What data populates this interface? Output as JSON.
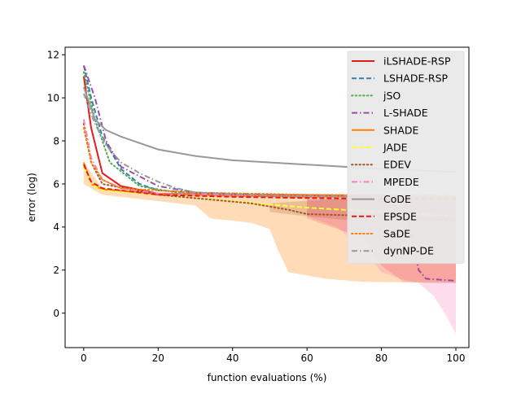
{
  "chart_data": {
    "type": "line",
    "title": "",
    "xlabel": "function evaluations (%)",
    "ylabel": "error (log)",
    "xlim": [
      -5,
      103.5
    ],
    "ylim": [
      -1.6,
      12.35
    ],
    "xticks": [
      0,
      20,
      40,
      60,
      80,
      100
    ],
    "yticks": [
      0,
      2,
      4,
      6,
      8,
      10,
      12
    ],
    "xtick_labels": [
      "0",
      "20",
      "40",
      "60",
      "80",
      "100"
    ],
    "ytick_labels": [
      "0",
      "2",
      "4",
      "6",
      "8",
      "10",
      "12"
    ],
    "grid": false,
    "legend_position": "top-right",
    "bands": [
      {
        "name": "SHADE range",
        "color": "#ff7f00",
        "opacity": 0.28,
        "upper": [
          [
            0,
            7.0
          ],
          [
            5,
            5.8
          ],
          [
            20,
            5.6
          ],
          [
            50,
            5.55
          ],
          [
            70,
            5.5
          ],
          [
            100,
            5.4
          ]
        ],
        "lower": [
          [
            0,
            6.0
          ],
          [
            5,
            5.5
          ],
          [
            20,
            5.2
          ],
          [
            30,
            5.0
          ],
          [
            34,
            4.4
          ],
          [
            45,
            4.2
          ],
          [
            50,
            3.9
          ],
          [
            52,
            3.0
          ],
          [
            55,
            1.9
          ],
          [
            60,
            1.75
          ],
          [
            65,
            1.6
          ],
          [
            75,
            1.45
          ],
          [
            100,
            1.4
          ]
        ]
      },
      {
        "name": "MPEDE range",
        "color": "#f781bf",
        "opacity": 0.28,
        "upper": [
          [
            60,
            5.3
          ],
          [
            80,
            5.3
          ],
          [
            95,
            5.3
          ],
          [
            100,
            5.3
          ]
        ],
        "lower": [
          [
            60,
            4.5
          ],
          [
            68,
            4.0
          ],
          [
            75,
            3.0
          ],
          [
            80,
            1.9
          ],
          [
            85,
            1.6
          ],
          [
            90,
            1.4
          ],
          [
            94,
            0.8
          ],
          [
            97,
            0.0
          ],
          [
            100,
            -0.95
          ]
        ]
      },
      {
        "name": "iLSHADE-RSP range",
        "color": "#e41a1c",
        "opacity": 0.16,
        "upper": [
          [
            60,
            5.3
          ],
          [
            100,
            5.3
          ]
        ],
        "lower": [
          [
            60,
            4.4
          ],
          [
            75,
            3.5
          ],
          [
            80,
            2.2
          ],
          [
            86,
            1.45
          ],
          [
            100,
            1.4
          ]
        ]
      },
      {
        "name": "EDEV range",
        "color": "#a65628",
        "opacity": 0.22,
        "upper": [
          [
            50,
            5.1
          ],
          [
            75,
            5.4
          ],
          [
            100,
            5.4
          ]
        ],
        "lower": [
          [
            50,
            4.7
          ],
          [
            60,
            4.5
          ],
          [
            75,
            4.25
          ],
          [
            100,
            4.2
          ]
        ]
      }
    ],
    "series": [
      {
        "name": "iLSHADE-RSP",
        "color": "#e41a1c",
        "dash": "solid",
        "width": 2.0,
        "points": [
          [
            0,
            11.0
          ],
          [
            2,
            8.6
          ],
          [
            5,
            6.5
          ],
          [
            10,
            5.9
          ],
          [
            20,
            5.55
          ],
          [
            40,
            5.5
          ],
          [
            70,
            5.45
          ],
          [
            90,
            5.4
          ],
          [
            100,
            5.4
          ]
        ]
      },
      {
        "name": "LSHADE-RSP",
        "color": "#377eb8",
        "dash": "dashed",
        "width": 2.0,
        "points": [
          [
            0,
            11.5
          ],
          [
            2,
            10.0
          ],
          [
            5,
            8.2
          ],
          [
            10,
            6.7
          ],
          [
            15,
            6.0
          ],
          [
            20,
            5.7
          ],
          [
            40,
            5.5
          ],
          [
            70,
            5.45
          ],
          [
            100,
            5.4
          ]
        ]
      },
      {
        "name": "jSO",
        "color": "#4daf4a",
        "dash": "dotted",
        "width": 2.0,
        "points": [
          [
            0,
            11.2
          ],
          [
            3,
            9.0
          ],
          [
            7,
            7.0
          ],
          [
            15,
            5.9
          ],
          [
            25,
            5.6
          ],
          [
            50,
            5.5
          ],
          [
            100,
            5.4
          ]
        ]
      },
      {
        "name": "L-SHADE",
        "color": "#984ea3",
        "dash": "dashdot",
        "width": 2.0,
        "points": [
          [
            0,
            11.5
          ],
          [
            3,
            10.0
          ],
          [
            6,
            8.0
          ],
          [
            10,
            6.8
          ],
          [
            20,
            5.9
          ],
          [
            30,
            5.6
          ],
          [
            50,
            5.5
          ],
          [
            80,
            5.45
          ],
          [
            87,
            4.5
          ],
          [
            90,
            2.0
          ],
          [
            92,
            1.6
          ],
          [
            100,
            1.5
          ]
        ]
      },
      {
        "name": "SHADE",
        "color": "#ff7f00",
        "dash": "solid",
        "width": 2.0,
        "points": [
          [
            0,
            7.0
          ],
          [
            2,
            6.0
          ],
          [
            5,
            5.75
          ],
          [
            20,
            5.55
          ],
          [
            40,
            5.45
          ],
          [
            60,
            5.4
          ],
          [
            80,
            5.4
          ],
          [
            100,
            5.4
          ]
        ]
      },
      {
        "name": "JADE",
        "color": "#ffff33",
        "dash": "dashed",
        "width": 2.0,
        "points": [
          [
            0,
            6.8
          ],
          [
            2,
            6.0
          ],
          [
            5,
            5.7
          ],
          [
            20,
            5.5
          ],
          [
            40,
            5.2
          ],
          [
            60,
            4.9
          ],
          [
            80,
            4.7
          ],
          [
            100,
            4.5
          ]
        ]
      },
      {
        "name": "EDEV",
        "color": "#a65628",
        "dash": "dotted",
        "width": 2.0,
        "points": [
          [
            0,
            8.8
          ],
          [
            2,
            7.0
          ],
          [
            5,
            6.0
          ],
          [
            20,
            5.5
          ],
          [
            45,
            5.1
          ],
          [
            55,
            4.8
          ],
          [
            60,
            4.6
          ],
          [
            80,
            4.5
          ],
          [
            100,
            4.3
          ]
        ]
      },
      {
        "name": "MPEDE",
        "color": "#f781bf",
        "dash": "dashdot",
        "width": 2.0,
        "points": [
          [
            0,
            9.0
          ],
          [
            2,
            7.2
          ],
          [
            5,
            6.2
          ],
          [
            10,
            5.8
          ],
          [
            20,
            5.55
          ],
          [
            50,
            5.45
          ],
          [
            100,
            5.4
          ]
        ]
      },
      {
        "name": "CoDE",
        "color": "#999999",
        "dash": "solid",
        "width": 2.0,
        "points": [
          [
            0,
            10.5
          ],
          [
            3,
            9.0
          ],
          [
            6,
            8.5
          ],
          [
            10,
            8.2
          ],
          [
            20,
            7.6
          ],
          [
            30,
            7.3
          ],
          [
            40,
            7.1
          ],
          [
            60,
            6.9
          ],
          [
            80,
            6.7
          ],
          [
            100,
            6.55
          ]
        ]
      },
      {
        "name": "EPSDE",
        "color": "#e41a1c",
        "dash": "dashed",
        "width": 2.0,
        "points": [
          [
            0,
            6.9
          ],
          [
            2,
            6.1
          ],
          [
            5,
            5.8
          ],
          [
            20,
            5.5
          ],
          [
            40,
            5.4
          ],
          [
            60,
            5.35
          ],
          [
            80,
            5.3
          ],
          [
            100,
            5.3
          ]
        ]
      },
      {
        "name": "SaDE",
        "color": "#ff7f00",
        "dash": "dotted",
        "width": 2.0,
        "points": [
          [
            0,
            8.6
          ],
          [
            2,
            7.0
          ],
          [
            5,
            6.2
          ],
          [
            10,
            5.8
          ],
          [
            30,
            5.6
          ],
          [
            60,
            5.5
          ],
          [
            100,
            5.45
          ]
        ]
      },
      {
        "name": "dynNP-DE",
        "color": "#999999",
        "dash": "dashdot",
        "width": 2.0,
        "points": [
          [
            0,
            10.2
          ],
          [
            3,
            8.8
          ],
          [
            6,
            7.8
          ],
          [
            10,
            7.0
          ],
          [
            15,
            6.5
          ],
          [
            20,
            6.1
          ],
          [
            25,
            5.8
          ],
          [
            30,
            5.6
          ],
          [
            50,
            5.45
          ],
          [
            100,
            5.35
          ]
        ]
      }
    ]
  }
}
